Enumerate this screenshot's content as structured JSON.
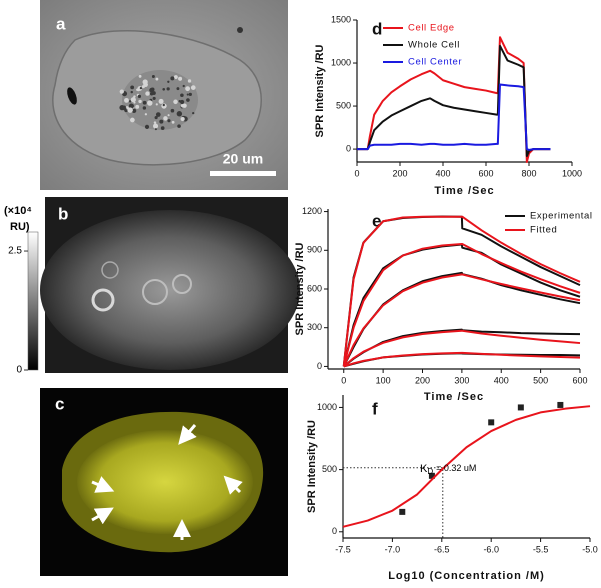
{
  "panels": [
    {
      "label": "a",
      "scale_bar": "20 um"
    },
    {
      "label": "b"
    },
    {
      "label": "c"
    }
  ],
  "colorbar": {
    "title": [
      "(×10⁴",
      "RU)"
    ],
    "ticks": [
      0,
      2.5
    ],
    "lim": [
      0,
      2.9
    ]
  },
  "chart_data": [
    {
      "type": "line",
      "panel": "d",
      "xlabel": "Time /Sec",
      "ylabel": "SPR Intensity /RU",
      "xlim": [
        0,
        1000
      ],
      "xticks": [
        0,
        200,
        400,
        600,
        800,
        1000
      ],
      "ylim": [
        -150,
        1500
      ],
      "yticks": [
        0,
        500,
        1000,
        1500
      ],
      "legend": "upper left",
      "legend_text_colored": true,
      "x": [
        0,
        50,
        60,
        80,
        120,
        160,
        200,
        250,
        300,
        340,
        360,
        400,
        450,
        500,
        550,
        600,
        650,
        655,
        665,
        700,
        750,
        775,
        790,
        800,
        820,
        850,
        900
      ],
      "series": [
        {
          "name": "Cell Edge",
          "color": "#e8141c",
          "values": [
            0,
            0,
            150,
            400,
            560,
            660,
            730,
            810,
            870,
            910,
            880,
            800,
            760,
            720,
            700,
            680,
            650,
            650,
            1300,
            1120,
            1050,
            1000,
            -150,
            -50,
            0,
            0,
            0
          ]
        },
        {
          "name": "Whole Cell",
          "color": "#111111",
          "values": [
            0,
            0,
            80,
            220,
            320,
            390,
            440,
            500,
            560,
            590,
            560,
            510,
            480,
            460,
            440,
            420,
            400,
            400,
            1200,
            1030,
            980,
            950,
            -80,
            -20,
            0,
            0,
            0
          ]
        },
        {
          "name": "Cell Center",
          "color": "#1a1ae0",
          "values": [
            0,
            0,
            40,
            50,
            50,
            50,
            60,
            60,
            50,
            60,
            60,
            50,
            50,
            60,
            50,
            50,
            60,
            60,
            750,
            740,
            730,
            720,
            0,
            -10,
            0,
            0,
            0
          ]
        }
      ]
    },
    {
      "type": "line",
      "panel": "e",
      "xlabel": "Time /Sec",
      "ylabel": "SPR Intensity /RU",
      "xlim": [
        -40,
        600
      ],
      "xticks": [
        0,
        100,
        200,
        300,
        400,
        500,
        600
      ],
      "ylim": [
        -20,
        1220
      ],
      "yticks": [
        0,
        300,
        600,
        900,
        1200
      ],
      "legend": "upper right",
      "legend_text_colored": false,
      "series": [
        {
          "name": "Experimental",
          "color": "#111111",
          "x": [
            0,
            25,
            50,
            100,
            150,
            200,
            250,
            300,
            301,
            350,
            400,
            450,
            500,
            550,
            600,
            null,
            0,
            25,
            50,
            100,
            150,
            200,
            250,
            300,
            301,
            350,
            400,
            450,
            500,
            550,
            600,
            null,
            0,
            25,
            50,
            100,
            150,
            200,
            250,
            300,
            301,
            350,
            400,
            450,
            500,
            550,
            600,
            null,
            0,
            25,
            50,
            100,
            150,
            200,
            250,
            300,
            301,
            350,
            400,
            450,
            500,
            550,
            600,
            null,
            0,
            25,
            50,
            100,
            150,
            200,
            250,
            300,
            301,
            350,
            400,
            450,
            500,
            550,
            600
          ],
          "values": [
            0,
            690,
            960,
            1125,
            1150,
            1158,
            1162,
            1160,
            1070,
            1020,
            930,
            850,
            770,
            700,
            630,
            null,
            0,
            320,
            530,
            760,
            860,
            905,
            930,
            945,
            920,
            880,
            790,
            720,
            650,
            590,
            540,
            null,
            0,
            150,
            290,
            480,
            590,
            660,
            700,
            725,
            715,
            680,
            630,
            590,
            555,
            520,
            490,
            null,
            0,
            60,
            110,
            190,
            235,
            260,
            275,
            285,
            280,
            270,
            265,
            258,
            255,
            252,
            250,
            null,
            0,
            20,
            40,
            70,
            82,
            92,
            98,
            102,
            100,
            95,
            92,
            90,
            88,
            88,
            86
          ]
        },
        {
          "name": "Fitted",
          "color": "#e8141c",
          "x": [
            0,
            25,
            50,
            100,
            150,
            200,
            250,
            300,
            301,
            350,
            400,
            450,
            500,
            550,
            600,
            null,
            0,
            25,
            50,
            100,
            150,
            200,
            250,
            300,
            301,
            350,
            400,
            450,
            500,
            550,
            600,
            null,
            0,
            25,
            50,
            100,
            150,
            200,
            250,
            300,
            301,
            350,
            400,
            450,
            500,
            550,
            600,
            null,
            0,
            25,
            50,
            100,
            150,
            200,
            250,
            300,
            301,
            350,
            400,
            450,
            500,
            550,
            600,
            null,
            0,
            25,
            50,
            100,
            150,
            200,
            250,
            300,
            301,
            350,
            400,
            450,
            500,
            550,
            600
          ],
          "values": [
            0,
            676,
            958,
            1125,
            1154,
            1160,
            1160,
            1160,
            1160,
            1055,
            959,
            872,
            793,
            722,
            656,
            null,
            0,
            300,
            507,
            746,
            859,
            912,
            937,
            949,
            949,
            871,
            801,
            735,
            676,
            621,
            570,
            null,
            0,
            166,
            295,
            474,
            583,
            649,
            689,
            713,
            713,
            675,
            639,
            605,
            573,
            542,
            513,
            null,
            0,
            64,
            114,
            183,
            225,
            251,
            266,
            276,
            276,
            255,
            238,
            222,
            207,
            194,
            181,
            null,
            0,
            24,
            43,
            70,
            85,
            95,
            101,
            105,
            105,
            97,
            90,
            84,
            78,
            73,
            68
          ]
        }
      ]
    },
    {
      "type": "line",
      "panel": "f",
      "xlabel": "Log10 (Concentration /M)",
      "ylabel": "SPR Intensity /RU",
      "xlim": [
        -7.5,
        -5.0
      ],
      "xticks": [
        -7.5,
        {
          "value": -7,
          "label": "-7.0"
        },
        -6.5,
        {
          "value": -6,
          "label": "-6.0"
        },
        -5.5,
        {
          "value": -5,
          "label": "-5.0"
        }
      ],
      "ylim": [
        -50,
        1100
      ],
      "yticks": [
        0,
        500,
        1000
      ],
      "annotation": [
        "K",
        "D",
        "= 0.32 uM"
      ],
      "guide": {
        "x": -6.49,
        "y": 515
      },
      "series": [
        {
          "color": "#222222",
          "mode": "markers",
          "x": [
            -6.9,
            -6.6,
            -6.0,
            -5.7,
            -5.3
          ],
          "values": [
            160,
            450,
            880,
            1000,
            1020
          ]
        },
        {
          "color": "#e8141c",
          "mode": "line",
          "x": [
            -7.5,
            -7.25,
            -7.0,
            -6.75,
            -6.5,
            -6.25,
            -6.0,
            -5.75,
            -5.5,
            -5.25,
            -5.0
          ],
          "values": [
            40,
            90,
            170,
            300,
            500,
            680,
            810,
            900,
            960,
            990,
            1010
          ]
        }
      ]
    }
  ]
}
